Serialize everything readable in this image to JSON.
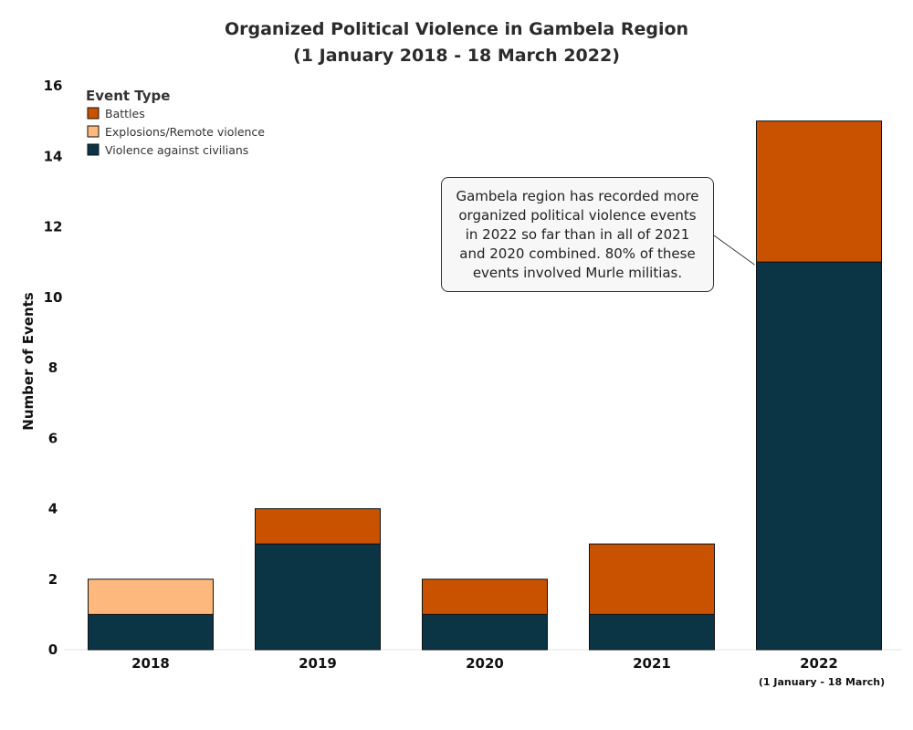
{
  "chart_data": {
    "type": "bar",
    "stacked": true,
    "title": [
      "Organized Political Violence in Gambela Region",
      "(1 January 2018 - 18 March 2022)"
    ],
    "ylabel": "Number of Events",
    "ylim": [
      0,
      16
    ],
    "yticks": [
      0,
      2,
      4,
      6,
      8,
      10,
      12,
      14,
      16
    ],
    "categories": [
      "2018",
      "2019",
      "2020",
      "2021",
      "2022"
    ],
    "category_sublabels": [
      "",
      "",
      "",
      "",
      "(1 January - 18 March)"
    ],
    "series": [
      {
        "name": "Violence against civilians",
        "color": "#0b3545",
        "values": [
          1,
          3,
          1,
          1,
          11
        ]
      },
      {
        "name": "Explosions/Remote violence",
        "color": "#fdb97d",
        "values": [
          1,
          0,
          0,
          0,
          0
        ]
      },
      {
        "name": "Battles",
        "color": "#c95200",
        "values": [
          0,
          1,
          1,
          2,
          4
        ]
      }
    ],
    "legend": {
      "title": "Event Type",
      "placement": "top-left",
      "entries": [
        {
          "name": "Battles",
          "color": "#c95200"
        },
        {
          "name": "Explosions/Remote violence",
          "color": "#fdb97d"
        },
        {
          "name": "Violence against civilians",
          "color": "#0b3545"
        }
      ]
    },
    "annotation": {
      "text": "Gambela region has recorded more organized political violence events in 2022 so far than in all of 2021 and 2020 combined. 80% of these events involved Murle militias.",
      "target_category": "2022"
    },
    "grid": false
  }
}
